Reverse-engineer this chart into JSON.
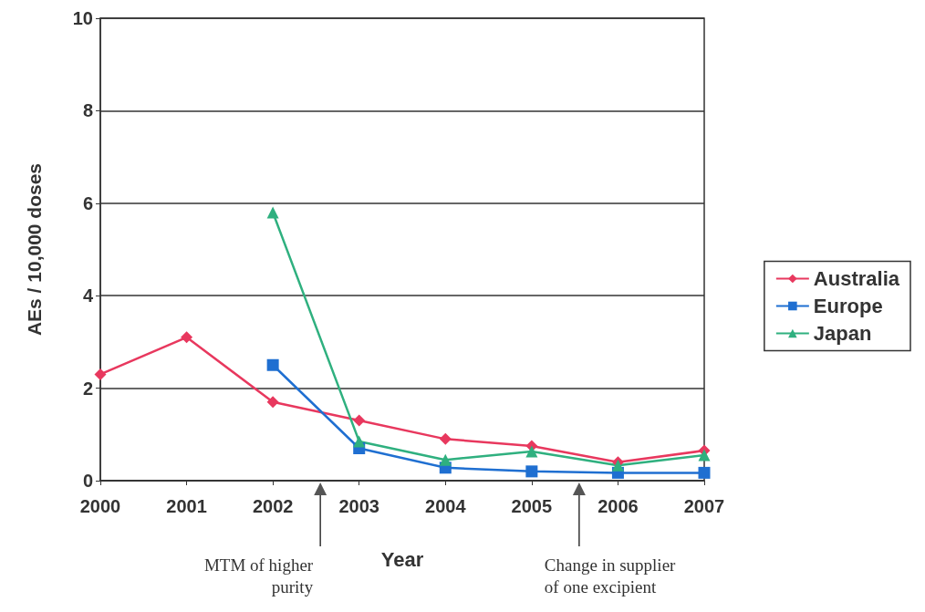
{
  "chart_data": {
    "type": "line",
    "xlabel": "Year",
    "ylabel": "AEs / 10,000 doses",
    "categories": [
      "2000",
      "2001",
      "2002",
      "2003",
      "2004",
      "2005",
      "2006",
      "2007"
    ],
    "series": [
      {
        "name": "Australia",
        "color": "#e8385e",
        "marker": "diamond",
        "values": [
          2.3,
          3.1,
          1.7,
          1.3,
          0.9,
          0.75,
          0.4,
          0.65
        ]
      },
      {
        "name": "Europe",
        "color": "#1f6fd1",
        "marker": "square",
        "values": [
          null,
          null,
          2.5,
          0.7,
          0.28,
          0.2,
          0.17,
          0.17
        ]
      },
      {
        "name": "Japan",
        "color": "#2fb07f",
        "marker": "triangle",
        "values": [
          null,
          null,
          5.8,
          0.85,
          0.45,
          0.63,
          0.33,
          0.55
        ]
      }
    ],
    "ylim": [
      0,
      10
    ],
    "yticks": [
      0,
      2,
      4,
      6,
      8,
      10
    ],
    "grid": "y",
    "legend": "right",
    "line_style": "solid",
    "annotations": [
      "MTM of higher\npurity",
      "Change in supplier\nof one excipient"
    ]
  }
}
